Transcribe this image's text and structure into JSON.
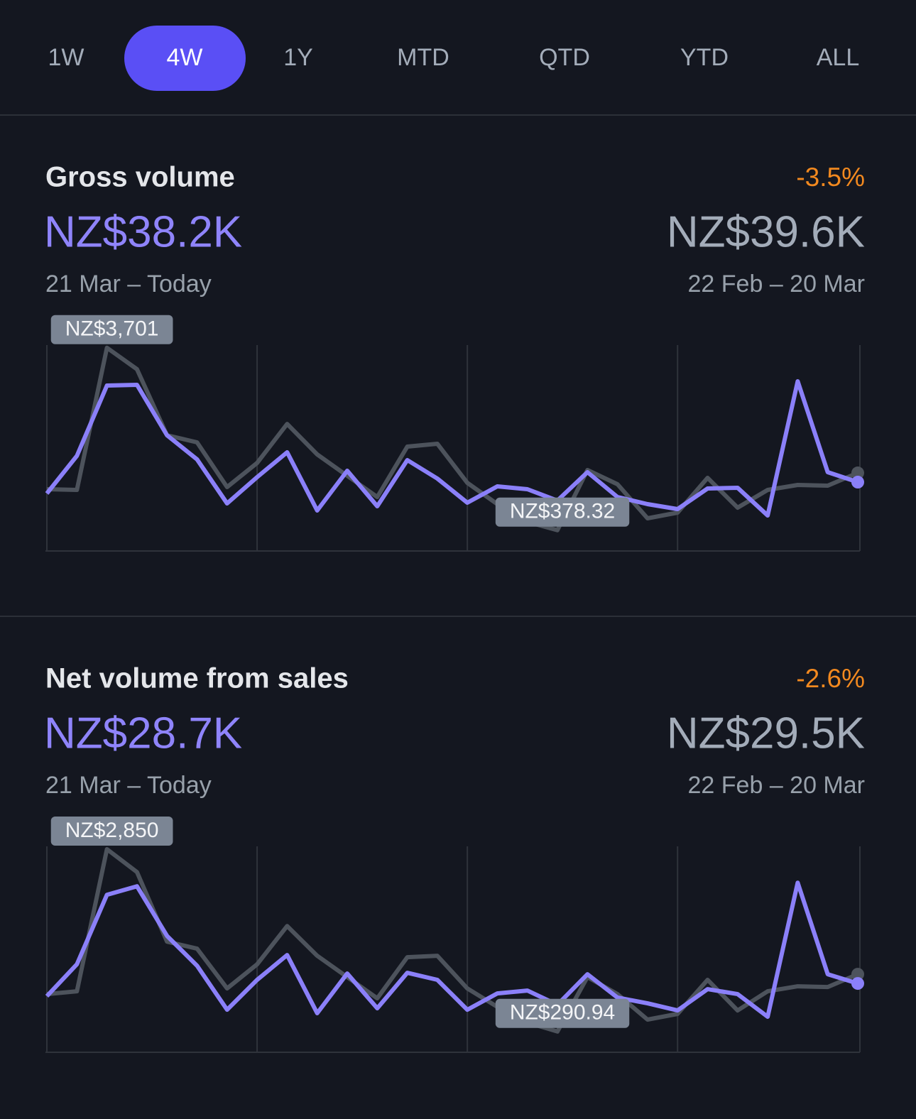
{
  "tabs": [
    "1W",
    "4W",
    "1Y",
    "MTD",
    "QTD",
    "YTD",
    "ALL"
  ],
  "selected_tab": 1,
  "chart_data": [
    {
      "type": "line",
      "title": "Gross volume",
      "change": "-3.5%",
      "current_total": "NZ$38.2K",
      "current_period": "21 Mar – Today",
      "previous_total": "NZ$39.6K",
      "previous_period": "22 Feb – 20 Mar",
      "ylim": [
        0,
        3750
      ],
      "series": [
        {
          "color": "#8b80f9",
          "values": [
            1047,
            1733,
            3013,
            3026,
            2108,
            1668,
            866,
            1345,
            1797,
            737,
            1461,
            815,
            1655,
            1319,
            879,
            1177,
            1125,
            918,
            1435,
            983,
            853,
            763,
            1138,
            1151,
            647,
            3090,
            1435,
            1254
          ]
        },
        {
          "color": "#4d535c",
          "values": [
            1125,
            1112,
            3701,
            3310,
            2108,
            1978,
            1164,
            1603,
            2314,
            1758,
            1370,
            983,
            1901,
            1952,
            1241,
            853,
            530,
            378.32,
            1474,
            1215,
            595,
            698,
            1332,
            789,
            1112,
            1202,
            1190,
            1422
          ],
          "value_labels": [
            null,
            null,
            "NZ$3,701",
            null,
            null,
            null,
            null,
            null,
            null,
            null,
            null,
            null,
            null,
            null,
            null,
            null,
            null,
            "NZ$378.32",
            null,
            null,
            null,
            null,
            null,
            null,
            null,
            null,
            null,
            null
          ]
        }
      ]
    },
    {
      "type": "line",
      "title": "Net volume from sales",
      "change": "-2.6%",
      "current_total": "NZ$28.7K",
      "current_period": "21 Mar – Today",
      "previous_total": "NZ$29.5K",
      "previous_period": "22 Feb – 20 Mar",
      "ylim": [
        0,
        2890
      ],
      "series": [
        {
          "color": "#8b80f9",
          "values": [
            787,
            1235,
            2210,
            2330,
            1633,
            1215,
            597,
            1016,
            1364,
            548,
            1105,
            617,
            1115,
            1016,
            597,
            826,
            866,
            667,
            1095,
            767,
            687,
            587,
            886,
            816,
            498,
            2380,
            1095,
            966
          ]
        },
        {
          "color": "#4d535c",
          "values": [
            816,
            856,
            2850,
            2529,
            1553,
            1454,
            896,
            1235,
            1772,
            1354,
            1055,
            757,
            1334,
            1354,
            896,
            637,
            418,
            290.94,
            1055,
            816,
            458,
            538,
            1016,
            587,
            856,
            926,
            916,
            1095
          ],
          "value_labels": [
            null,
            null,
            "NZ$2,850",
            null,
            null,
            null,
            null,
            null,
            null,
            null,
            null,
            null,
            null,
            null,
            null,
            null,
            null,
            "NZ$290.94",
            null,
            null,
            null,
            null,
            null,
            null,
            null,
            null,
            null,
            null
          ]
        }
      ]
    }
  ]
}
